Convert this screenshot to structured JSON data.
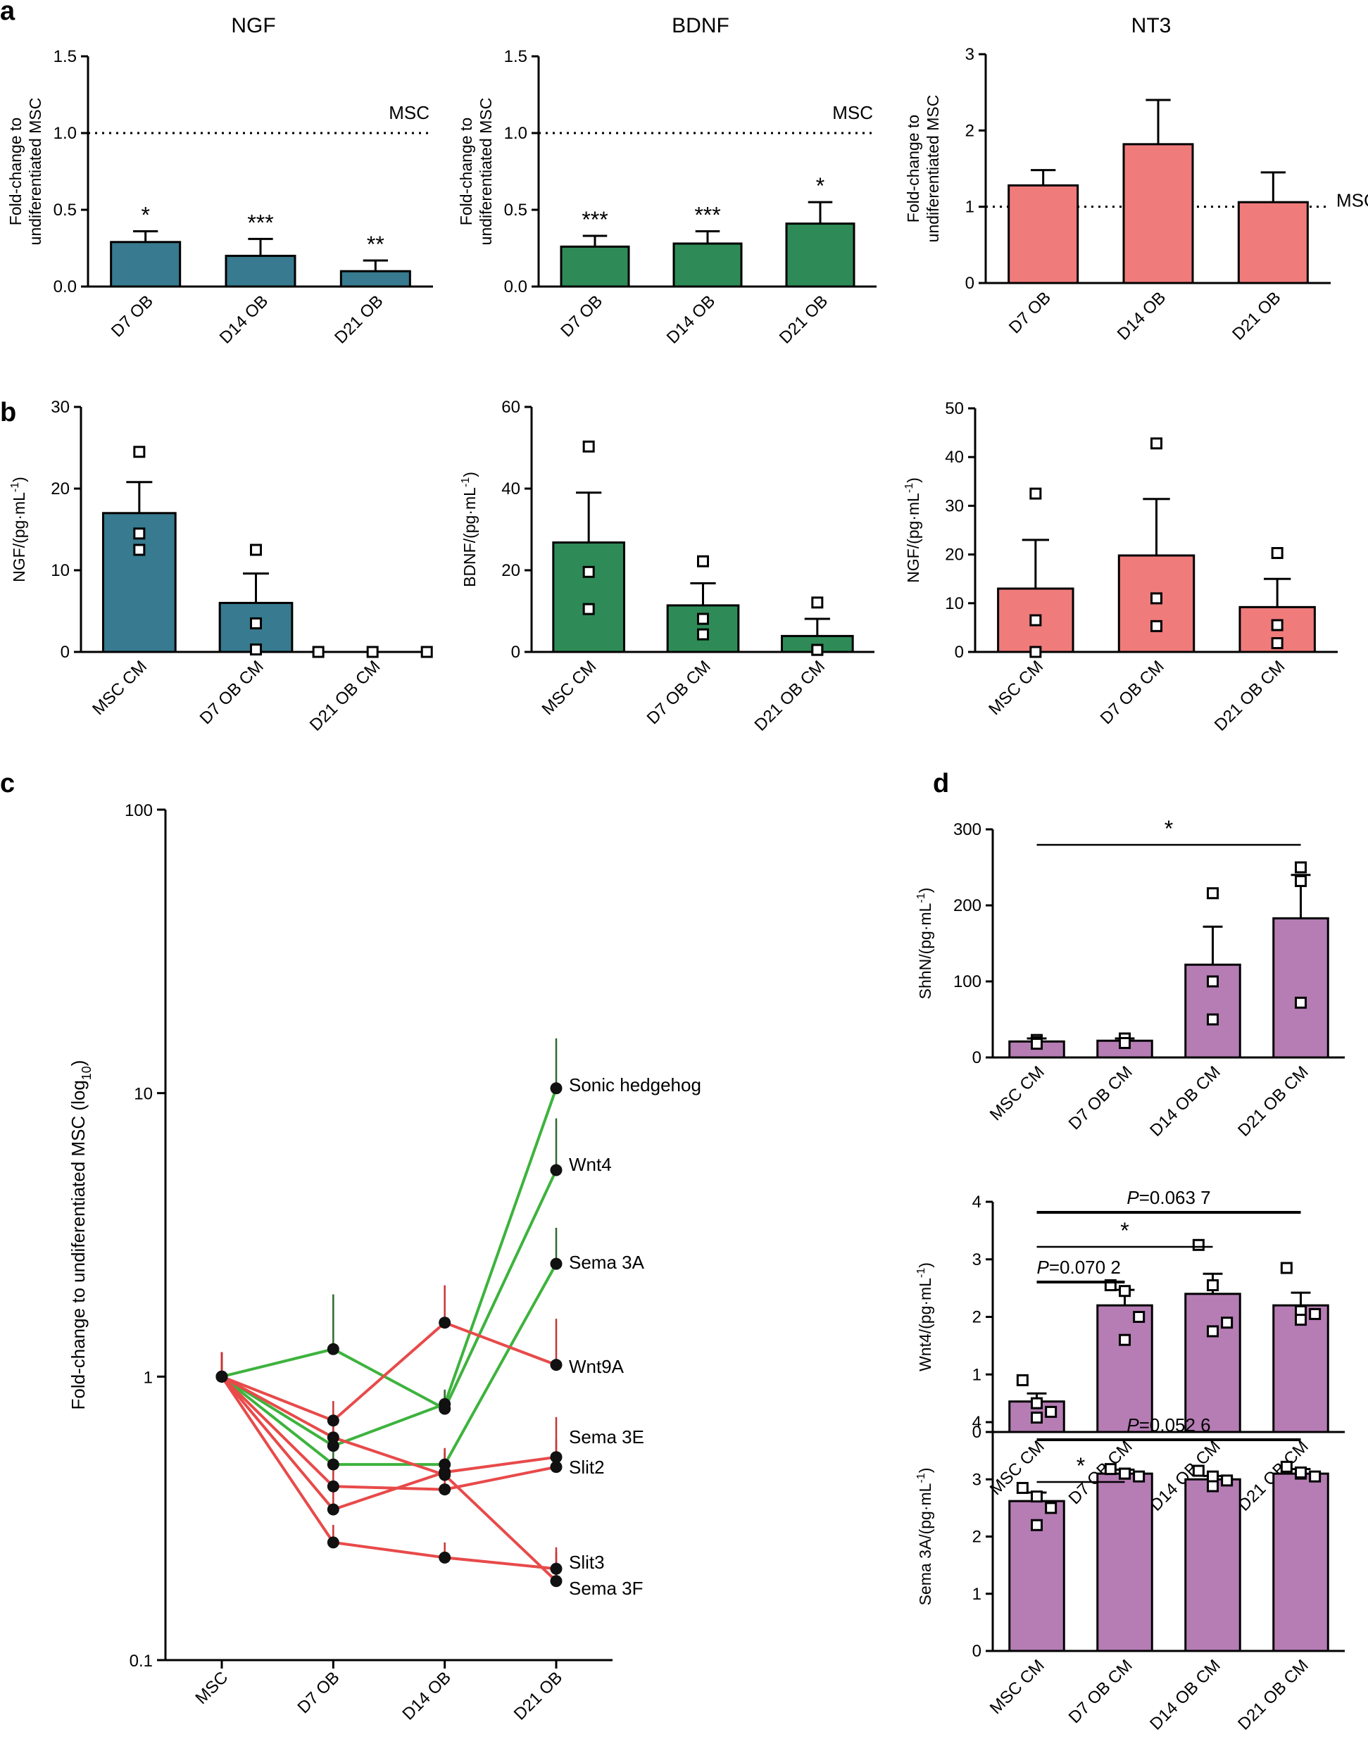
{
  "colors": {
    "ngf": "#387a8f",
    "bdnf": "#2e8b57",
    "nt3": "#f07b7b",
    "d_purple": "#b57db4",
    "line_green": "#3db33d",
    "line_red": "#e84a4a",
    "err_green": "#2f6b2f",
    "err_red": "#c83535"
  },
  "chart_data": [
    {
      "id": "a1",
      "panel_label": "a",
      "type": "bar",
      "title": "NGF",
      "ylabel": [
        "Fold-change to",
        "undiferentiated MSC"
      ],
      "ylim": [
        0,
        1.5
      ],
      "yticks": [
        "0.0",
        "0.5",
        "1.0",
        "1.5"
      ],
      "categories": [
        "D7 OB",
        "D14 OB",
        "D21 OB"
      ],
      "values": [
        0.29,
        0.2,
        0.1
      ],
      "errors": [
        0.07,
        0.11,
        0.07
      ],
      "stars": [
        "*",
        "***",
        "**"
      ],
      "reference": {
        "value": 1.0,
        "label": "MSC"
      },
      "color": "#387a8f"
    },
    {
      "id": "a2",
      "type": "bar",
      "title": "BDNF",
      "ylabel": [
        "Fold-change to",
        "undiferentiated MSC"
      ],
      "ylim": [
        0,
        1.5
      ],
      "yticks": [
        "0.0",
        "0.5",
        "1.0",
        "1.5"
      ],
      "categories": [
        "D7 OB",
        "D14 OB",
        "D21 OB"
      ],
      "values": [
        0.26,
        0.28,
        0.41
      ],
      "errors": [
        0.07,
        0.08,
        0.14
      ],
      "stars": [
        "***",
        "***",
        "*"
      ],
      "reference": {
        "value": 1.0,
        "label": "MSC"
      },
      "color": "#2e8b57"
    },
    {
      "id": "a3",
      "type": "bar",
      "title": "NT3",
      "ylabel": [
        "Fold-change to",
        "undiferentiated MSC"
      ],
      "ylim": [
        0,
        3
      ],
      "yticks": [
        "0",
        "1",
        "2",
        "3"
      ],
      "categories": [
        "D7 OB",
        "D14 OB",
        "D21 OB"
      ],
      "values": [
        1.28,
        1.82,
        1.06
      ],
      "errors": [
        0.2,
        0.58,
        0.39
      ],
      "stars": [
        "",
        "",
        ""
      ],
      "reference": {
        "value": 1.0,
        "label": "MSC"
      },
      "color": "#f07b7b"
    },
    {
      "id": "b1",
      "panel_label": "b",
      "type": "bar",
      "title": "",
      "ylabel_main": "NGF/(pg·mL",
      "ylabel_sup": "-1",
      "ylabel_end": ")",
      "ylim": [
        0,
        30
      ],
      "yticks": [
        "0",
        "10",
        "20",
        "30"
      ],
      "categories": [
        "MSC CM",
        "D7 OB CM",
        "D21 OB CM"
      ],
      "values": [
        17,
        6,
        0
      ],
      "errors": [
        3.8,
        3.6,
        0
      ],
      "points": [
        [
          24.5,
          14.5,
          12.5
        ],
        [
          12.5,
          3.5,
          0.3
        ],
        [
          0,
          0,
          0
        ]
      ],
      "color": "#387a8f"
    },
    {
      "id": "b2",
      "type": "bar",
      "title": "",
      "ylabel_main": "BDNF/(pg·mL",
      "ylabel_sup": "-1",
      "ylabel_end": ")",
      "ylim": [
        0,
        60
      ],
      "yticks": [
        "0",
        "20",
        "40",
        "60"
      ],
      "categories": [
        "MSC CM",
        "D7 OB CM",
        "D21 OB CM"
      ],
      "values": [
        26.8,
        11.4,
        3.9
      ],
      "errors": [
        12.2,
        5.4,
        4.2
      ],
      "points": [
        [
          50.3,
          19.6,
          10.5
        ],
        [
          22.2,
          8.1,
          4.3
        ],
        [
          12.1,
          0.5,
          0.5
        ]
      ],
      "color": "#2e8b57"
    },
    {
      "id": "b3",
      "type": "bar",
      "title": "",
      "ylabel_main": "NGF/(pg·mL",
      "ylabel_sup": "-1",
      "ylabel_end": ")",
      "ylim": [
        0,
        50
      ],
      "yticks": [
        "0",
        "10",
        "20",
        "30",
        "40",
        "50"
      ],
      "categories": [
        "MSC CM",
        "D7 OB CM",
        "D21 OB CM"
      ],
      "values": [
        13,
        19.8,
        9.2
      ],
      "errors": [
        10,
        11.6,
        5.8
      ],
      "points": [
        [
          32.5,
          6.5,
          0
        ],
        [
          42.8,
          11,
          5.3
        ],
        [
          20.3,
          5.5,
          1.8
        ]
      ],
      "color": "#f07b7b"
    },
    {
      "id": "c",
      "panel_label": "c",
      "type": "line",
      "yscale": "log",
      "ylabel": "Fold-change to undiferentiated MSC (log",
      "ylabel_sub": "10",
      "ylabel_end": ")",
      "ylim": [
        0.1,
        100
      ],
      "yticks": [
        "0.1",
        "1",
        "10",
        "100"
      ],
      "x": [
        "MSC",
        "D7 OB",
        "D14 OB",
        "D21 OB"
      ],
      "series": [
        {
          "name": "Sonic hedgehog",
          "color": "green",
          "values": [
            1,
            0.57,
            0.8,
            10.4
          ],
          "errors": [
            0.22,
            0.14,
            0.1,
            5.2
          ]
        },
        {
          "name": "Wnt4",
          "color": "green",
          "values": [
            1,
            1.25,
            0.77,
            5.35
          ],
          "errors": [
            0.22,
            0.7,
            0.12,
            2.8
          ]
        },
        {
          "name": "Sema 3A",
          "color": "green",
          "values": [
            1,
            0.49,
            0.49,
            2.5
          ],
          "errors": [
            0.22,
            0.1,
            0.06,
            0.85
          ]
        },
        {
          "name": "Wnt9A",
          "color": "red",
          "values": [
            1,
            0.7,
            1.55,
            1.1
          ],
          "errors": [
            0.22,
            0.12,
            0.55,
            0.5
          ]
        },
        {
          "name": "Sema 3E",
          "color": "red",
          "values": [
            1,
            0.34,
            0.46,
            0.52
          ],
          "errors": [
            0.22,
            0.08,
            0.1,
            0.2
          ]
        },
        {
          "name": "Slit2",
          "color": "red",
          "values": [
            1,
            0.41,
            0.4,
            0.48
          ],
          "errors": [
            0.22,
            0.1,
            0.08,
            0.12
          ]
        },
        {
          "name": "Slit3",
          "color": "red",
          "values": [
            1,
            0.26,
            0.23,
            0.21
          ],
          "errors": [
            0.22,
            0.04,
            0.03,
            0.04
          ]
        },
        {
          "name": "Sema 3F",
          "color": "red",
          "values": [
            1,
            0.61,
            0.45,
            0.19
          ],
          "errors": [
            0.22,
            0.1,
            0.09,
            0.05
          ]
        }
      ],
      "labels": [
        "Sonic hedgehog",
        "Wnt4",
        "Sema 3A",
        "Wnt9A",
        "Sema 3E",
        "Slit2",
        "Slit3",
        "Sema 3F"
      ]
    },
    {
      "id": "d1",
      "panel_label": "d",
      "type": "bar",
      "title": "",
      "ylabel_main": "ShhN/(pg·mL",
      "ylabel_sup": "-1",
      "ylabel_end": ")",
      "ylim": [
        0,
        300
      ],
      "yticks": [
        "0",
        "100",
        "200",
        "300"
      ],
      "categories": [
        "MSC CM",
        "D7 OB CM",
        "D14 OB CM",
        "D21 OB CM"
      ],
      "values": [
        21,
        22,
        122,
        183
      ],
      "errors": [
        4,
        3,
        50,
        57
      ],
      "points": [
        [
          23,
          20,
          18
        ],
        [
          23,
          25,
          19
        ],
        [
          216,
          100,
          50
        ],
        [
          250,
          232,
          72
        ]
      ],
      "brackets": [
        {
          "from": 0,
          "to": 3,
          "label": "*",
          "italic_p": false
        }
      ],
      "color": "#b57db4"
    },
    {
      "id": "d2",
      "type": "bar",
      "title": "",
      "ylabel_main": "Wnt4/(pg·mL",
      "ylabel_sup": "-1",
      "ylabel_end": ")",
      "ylim": [
        0,
        4
      ],
      "yticks": [
        "0",
        "1",
        "2",
        "3",
        "4"
      ],
      "categories": [
        "MSC CM",
        "D7 OB CM",
        "D14 OB CM",
        "D21 OB CM"
      ],
      "values": [
        0.53,
        2.2,
        2.4,
        2.2
      ],
      "errors": [
        0.14,
        0.27,
        0.35,
        0.22
      ],
      "points": [
        [
          0.9,
          0.5,
          0.35,
          0.25
        ],
        [
          2.55,
          2.45,
          2.0,
          1.6
        ],
        [
          3.25,
          2.55,
          1.9,
          1.75
        ],
        [
          2.85,
          2.1,
          2.05,
          1.95
        ]
      ],
      "brackets": [
        {
          "from": 0,
          "to": 3,
          "label": "=0.063 7",
          "italic_p": true
        },
        {
          "from": 0,
          "to": 2,
          "label": "*",
          "italic_p": false
        },
        {
          "from": 0,
          "to": 1,
          "label": "=0.070 2",
          "italic_p": true
        }
      ],
      "color": "#b57db4"
    },
    {
      "id": "d3",
      "type": "bar",
      "title": "",
      "ylabel_main": "Sema 3A/(pg·mL",
      "ylabel_sup": "-1",
      "ylabel_end": ")",
      "ylim": [
        0,
        4
      ],
      "yticks": [
        "0",
        "1",
        "2",
        "3",
        "4"
      ],
      "categories": [
        "MSC CM",
        "D7 OB CM",
        "D14 OB CM",
        "D21 OB CM"
      ],
      "values": [
        2.62,
        3.1,
        3.0,
        3.1
      ],
      "errors": [
        0.15,
        0.07,
        0.06,
        0.08
      ],
      "points": [
        [
          2.85,
          2.7,
          2.5,
          2.2
        ],
        [
          3.18,
          3.1,
          3.05,
          3.1
        ],
        [
          3.15,
          3.05,
          2.98,
          2.88
        ],
        [
          3.22,
          3.1,
          3.05,
          3.12
        ]
      ],
      "brackets": [
        {
          "from": 0,
          "to": 3,
          "label": "=0.052 6",
          "italic_p": true
        },
        {
          "from": 0,
          "to": 1,
          "label": "*",
          "italic_p": false
        }
      ],
      "color": "#b57db4"
    }
  ]
}
